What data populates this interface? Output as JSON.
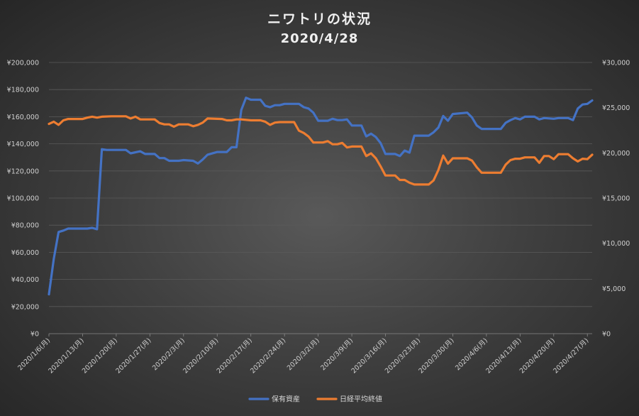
{
  "chart_data": {
    "type": "line",
    "title": "ニワトリの状況",
    "subtitle": "2020/4/28",
    "x_tick_labels": [
      "2020/1/6(月)",
      "2020/1/13(月)",
      "2020/1/20(月)",
      "2020/1/27(月)",
      "2020/2/3(月)",
      "2020/2/10(月)",
      "2020/2/17(月)",
      "2020/2/24(月)",
      "2020/3/2(月)",
      "2020/3/9(月)",
      "2020/3/16(月)",
      "2020/3/23(月)",
      "2020/3/30(月)",
      "2020/4/6(月)",
      "2020/4/13(月)",
      "2020/4/20(月)",
      "2020/4/27(月)"
    ],
    "x_range": [
      "2020/1/6",
      "2020/4/28"
    ],
    "left_axis": {
      "ylim": [
        0,
        200000
      ],
      "ticks": [
        "¥0",
        "¥20,000",
        "¥40,000",
        "¥60,000",
        "¥80,000",
        "¥100,000",
        "¥120,000",
        "¥140,000",
        "¥160,000",
        "¥180,000",
        "¥200,000"
      ]
    },
    "right_axis": {
      "ylim": [
        0,
        30000
      ],
      "ticks": [
        "¥0",
        "¥5,000",
        "¥10,000",
        "¥15,000",
        "¥20,000",
        "¥25,000",
        "¥30,000"
      ]
    },
    "grid": true,
    "legend_position": "bottom",
    "series": [
      {
        "name": "保有資産",
        "axis": "left",
        "color": "#4472c4",
        "points": [
          [
            "2020/1/6",
            29000
          ],
          [
            "2020/1/7",
            55000
          ],
          [
            "2020/1/8",
            75000
          ],
          [
            "2020/1/9",
            76000
          ],
          [
            "2020/1/10",
            77500
          ],
          [
            "2020/1/12",
            77500
          ],
          [
            "2020/1/14",
            77500
          ],
          [
            "2020/1/15",
            78000
          ],
          [
            "2020/1/16",
            77000
          ],
          [
            "2020/1/17",
            136000
          ],
          [
            "2020/1/18",
            135500
          ],
          [
            "2020/1/20",
            135500
          ],
          [
            "2020/1/22",
            135500
          ],
          [
            "2020/1/23",
            133000
          ],
          [
            "2020/1/25",
            134500
          ],
          [
            "2020/1/26",
            132500
          ],
          [
            "2020/1/28",
            132500
          ],
          [
            "2020/1/29",
            129500
          ],
          [
            "2020/1/30",
            129500
          ],
          [
            "2020/1/31",
            127500
          ],
          [
            "2020/2/2",
            127500
          ],
          [
            "2020/2/3",
            128000
          ],
          [
            "2020/2/5",
            127500
          ],
          [
            "2020/2/6",
            125500
          ],
          [
            "2020/2/7",
            128500
          ],
          [
            "2020/2/8",
            132000
          ],
          [
            "2020/2/10",
            134000
          ],
          [
            "2020/2/12",
            134000
          ],
          [
            "2020/2/13",
            137500
          ],
          [
            "2020/2/14",
            137500
          ],
          [
            "2020/2/15",
            165000
          ],
          [
            "2020/2/16",
            174000
          ],
          [
            "2020/2/17",
            172500
          ],
          [
            "2020/2/19",
            172500
          ],
          [
            "2020/2/20",
            168000
          ],
          [
            "2020/2/21",
            167000
          ],
          [
            "2020/2/22",
            168500
          ],
          [
            "2020/2/23",
            168500
          ],
          [
            "2020/2/24",
            169500
          ],
          [
            "2020/2/27",
            169500
          ],
          [
            "2020/2/28",
            167000
          ],
          [
            "2020/2/29",
            166000
          ],
          [
            "2020/3/1",
            163000
          ],
          [
            "2020/3/2",
            157000
          ],
          [
            "2020/3/4",
            157000
          ],
          [
            "2020/3/5",
            158500
          ],
          [
            "2020/3/6",
            157500
          ],
          [
            "2020/3/7",
            157500
          ],
          [
            "2020/3/8",
            158000
          ],
          [
            "2020/3/9",
            153500
          ],
          [
            "2020/3/11",
            153500
          ],
          [
            "2020/3/12",
            145500
          ],
          [
            "2020/3/13",
            147500
          ],
          [
            "2020/3/14",
            145000
          ],
          [
            "2020/3/15",
            140500
          ],
          [
            "2020/3/16",
            132500
          ],
          [
            "2020/3/18",
            132500
          ],
          [
            "2020/3/19",
            131000
          ],
          [
            "2020/3/20",
            135000
          ],
          [
            "2020/3/21",
            133500
          ],
          [
            "2020/3/22",
            146000
          ],
          [
            "2020/3/25",
            146000
          ],
          [
            "2020/3/26",
            148500
          ],
          [
            "2020/3/27",
            152000
          ],
          [
            "2020/3/28",
            160500
          ],
          [
            "2020/3/29",
            157000
          ],
          [
            "2020/3/30",
            162000
          ],
          [
            "2020/4/2",
            163000
          ],
          [
            "2020/4/3",
            159500
          ],
          [
            "2020/4/4",
            153500
          ],
          [
            "2020/4/5",
            151000
          ],
          [
            "2020/4/9",
            151000
          ],
          [
            "2020/4/10",
            155500
          ],
          [
            "2020/4/11",
            157500
          ],
          [
            "2020/4/12",
            159000
          ],
          [
            "2020/4/13",
            158000
          ],
          [
            "2020/4/14",
            160000
          ],
          [
            "2020/4/16",
            160000
          ],
          [
            "2020/4/17",
            158000
          ],
          [
            "2020/4/18",
            159000
          ],
          [
            "2020/4/20",
            158500
          ],
          [
            "2020/4/21",
            159000
          ],
          [
            "2020/4/23",
            159000
          ],
          [
            "2020/4/24",
            157500
          ],
          [
            "2020/4/25",
            166000
          ],
          [
            "2020/4/26",
            169000
          ],
          [
            "2020/4/27",
            169500
          ],
          [
            "2020/4/28",
            172000
          ]
        ]
      },
      {
        "name": "日経平均終値",
        "axis": "right",
        "color": "#ed7d31",
        "points": [
          [
            "2020/1/6",
            23200
          ],
          [
            "2020/1/7",
            23450
          ],
          [
            "2020/1/8",
            23100
          ],
          [
            "2020/1/9",
            23600
          ],
          [
            "2020/1/10",
            23750
          ],
          [
            "2020/1/13",
            23750
          ],
          [
            "2020/1/14",
            23900
          ],
          [
            "2020/1/15",
            24000
          ],
          [
            "2020/1/16",
            23900
          ],
          [
            "2020/1/17",
            24000
          ],
          [
            "2020/1/19",
            24050
          ],
          [
            "2020/1/22",
            24050
          ],
          [
            "2020/1/23",
            23800
          ],
          [
            "2020/1/24",
            24000
          ],
          [
            "2020/1/25",
            23700
          ],
          [
            "2020/1/28",
            23700
          ],
          [
            "2020/1/29",
            23300
          ],
          [
            "2020/1/30",
            23150
          ],
          [
            "2020/1/31",
            23150
          ],
          [
            "2020/2/1",
            22900
          ],
          [
            "2020/2/2",
            23150
          ],
          [
            "2020/2/4",
            23150
          ],
          [
            "2020/2/5",
            22950
          ],
          [
            "2020/2/6",
            23100
          ],
          [
            "2020/2/7",
            23350
          ],
          [
            "2020/2/8",
            23800
          ],
          [
            "2020/2/11",
            23750
          ],
          [
            "2020/2/12",
            23600
          ],
          [
            "2020/2/13",
            23600
          ],
          [
            "2020/2/14",
            23700
          ],
          [
            "2020/2/15",
            23700
          ],
          [
            "2020/2/17",
            23600
          ],
          [
            "2020/2/19",
            23600
          ],
          [
            "2020/2/20",
            23450
          ],
          [
            "2020/2/21",
            23100
          ],
          [
            "2020/2/22",
            23350
          ],
          [
            "2020/2/23",
            23400
          ],
          [
            "2020/2/24",
            23400
          ],
          [
            "2020/2/26",
            23400
          ],
          [
            "2020/2/27",
            22450
          ],
          [
            "2020/2/28",
            22200
          ],
          [
            "2020/2/29",
            21800
          ],
          [
            "2020/3/1",
            21150
          ],
          [
            "2020/3/3",
            21150
          ],
          [
            "2020/3/4",
            21300
          ],
          [
            "2020/3/5",
            20950
          ],
          [
            "2020/3/6",
            20950
          ],
          [
            "2020/3/7",
            21100
          ],
          [
            "2020/3/8",
            20600
          ],
          [
            "2020/3/9",
            20700
          ],
          [
            "2020/3/11",
            20700
          ],
          [
            "2020/3/12",
            19650
          ],
          [
            "2020/3/13",
            19950
          ],
          [
            "2020/3/14",
            19400
          ],
          [
            "2020/3/15",
            18500
          ],
          [
            "2020/3/16",
            17500
          ],
          [
            "2020/3/18",
            17500
          ],
          [
            "2020/3/19",
            17000
          ],
          [
            "2020/3/20",
            17000
          ],
          [
            "2020/3/21",
            16700
          ],
          [
            "2020/3/22",
            16500
          ],
          [
            "2020/3/25",
            16500
          ],
          [
            "2020/3/26",
            16950
          ],
          [
            "2020/3/27",
            18100
          ],
          [
            "2020/3/28",
            19700
          ],
          [
            "2020/3/29",
            18800
          ],
          [
            "2020/3/30",
            19400
          ],
          [
            "2020/4/2",
            19400
          ],
          [
            "2020/4/3",
            19150
          ],
          [
            "2020/4/4",
            18400
          ],
          [
            "2020/4/5",
            17800
          ],
          [
            "2020/4/9",
            17800
          ],
          [
            "2020/4/10",
            18700
          ],
          [
            "2020/4/11",
            19200
          ],
          [
            "2020/4/12",
            19350
          ],
          [
            "2020/4/13",
            19350
          ],
          [
            "2020/4/14",
            19500
          ],
          [
            "2020/4/16",
            19500
          ],
          [
            "2020/4/17",
            18900
          ],
          [
            "2020/4/18",
            19650
          ],
          [
            "2020/4/19",
            19650
          ],
          [
            "2020/4/20",
            19300
          ],
          [
            "2020/4/21",
            19850
          ],
          [
            "2020/4/23",
            19850
          ],
          [
            "2020/4/24",
            19400
          ],
          [
            "2020/4/25",
            19050
          ],
          [
            "2020/4/26",
            19350
          ],
          [
            "2020/4/27",
            19300
          ],
          [
            "2020/4/28",
            19800
          ]
        ]
      }
    ]
  }
}
